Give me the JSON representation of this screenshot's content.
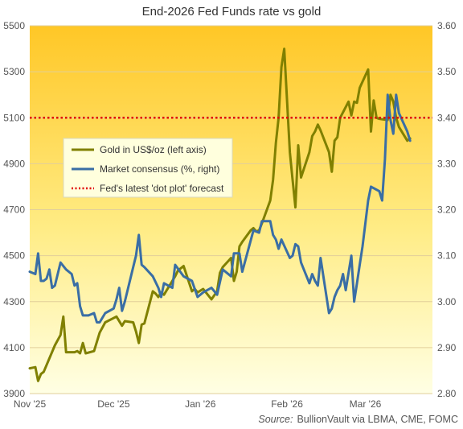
{
  "chart_data": {
    "type": "line",
    "title": "End-2026 Fed Funds rate vs gold",
    "source_label": "Source:",
    "source_text": "BullionVault via LBMA, CME, FOMC",
    "x_ticks": [
      "Nov '25",
      "Dec '25",
      "Jan '26",
      "Feb '26",
      "Mar '26"
    ],
    "x_range": [
      "2025-11-01",
      "2026-03-25"
    ],
    "left_axis": {
      "ylim": [
        3900,
        5500
      ],
      "ticks": [
        "5500",
        "5300",
        "5100",
        "4900",
        "4700",
        "4500",
        "4300",
        "4100",
        "3900"
      ]
    },
    "right_axis": {
      "ylim": [
        2.8,
        3.6
      ],
      "ticks": [
        "3.60",
        "3.50",
        "3.40",
        "3.30",
        "3.20",
        "3.10",
        "3.00",
        "2.90",
        "2.80"
      ]
    },
    "grid": "horizontal",
    "legend_position": "left-middle",
    "series": [
      {
        "name": "Gold in US$/oz (left axis)",
        "axis": "left",
        "color": "#808000",
        "points": [
          [
            "2025-11-01",
            4010
          ],
          [
            "2025-11-03",
            4015
          ],
          [
            "2025-11-04",
            3955
          ],
          [
            "2025-11-05",
            3985
          ],
          [
            "2025-11-06",
            3995
          ],
          [
            "2025-11-10",
            4110
          ],
          [
            "2025-11-12",
            4155
          ],
          [
            "2025-11-13",
            4235
          ],
          [
            "2025-11-14",
            4080
          ],
          [
            "2025-11-17",
            4080
          ],
          [
            "2025-11-18",
            4085
          ],
          [
            "2025-11-19",
            4075
          ],
          [
            "2025-11-20",
            4120
          ],
          [
            "2025-11-21",
            4075
          ],
          [
            "2025-11-24",
            4085
          ],
          [
            "2025-11-26",
            4165
          ],
          [
            "2025-11-28",
            4210
          ],
          [
            "2025-12-02",
            4235
          ],
          [
            "2025-12-04",
            4195
          ],
          [
            "2025-12-05",
            4215
          ],
          [
            "2025-12-08",
            4210
          ],
          [
            "2025-12-09",
            4170
          ],
          [
            "2025-12-10",
            4120
          ],
          [
            "2025-12-11",
            4200
          ],
          [
            "2025-12-12",
            4205
          ],
          [
            "2025-12-15",
            4345
          ],
          [
            "2025-12-16",
            4335
          ],
          [
            "2025-12-17",
            4320
          ],
          [
            "2025-12-18",
            4340
          ],
          [
            "2025-12-19",
            4330
          ],
          [
            "2025-12-22",
            4390
          ],
          [
            "2025-12-23",
            4410
          ],
          [
            "2025-12-24",
            4435
          ],
          [
            "2025-12-26",
            4455
          ],
          [
            "2025-12-29",
            4345
          ],
          [
            "2025-12-30",
            4355
          ],
          [
            "2025-12-31",
            4340
          ],
          [
            "2026-01-02",
            4355
          ],
          [
            "2026-01-05",
            4310
          ],
          [
            "2026-01-07",
            4345
          ],
          [
            "2026-01-08",
            4425
          ],
          [
            "2026-01-09",
            4450
          ],
          [
            "2026-01-12",
            4490
          ],
          [
            "2026-01-13",
            4390
          ],
          [
            "2026-01-14",
            4430
          ],
          [
            "2026-01-15",
            4540
          ],
          [
            "2026-01-16",
            4560
          ],
          [
            "2026-01-19",
            4610
          ],
          [
            "2026-01-20",
            4620
          ],
          [
            "2026-01-21",
            4605
          ],
          [
            "2026-01-22",
            4610
          ],
          [
            "2026-01-23",
            4640
          ],
          [
            "2026-01-26",
            4740
          ],
          [
            "2026-01-27",
            4830
          ],
          [
            "2026-01-28",
            4990
          ],
          [
            "2026-01-29",
            5100
          ],
          [
            "2026-01-30",
            5320
          ],
          [
            "2026-01-31",
            5400
          ],
          [
            "2026-02-02",
            4950
          ],
          [
            "2026-02-03",
            4830
          ],
          [
            "2026-02-04",
            4710
          ],
          [
            "2026-02-05",
            4980
          ],
          [
            "2026-02-06",
            4840
          ],
          [
            "2026-02-09",
            4950
          ],
          [
            "2026-02-10",
            5020
          ],
          [
            "2026-02-11",
            5040
          ],
          [
            "2026-02-12",
            5070
          ],
          [
            "2026-02-13",
            5045
          ],
          [
            "2026-02-16",
            4950
          ],
          [
            "2026-02-17",
            4865
          ],
          [
            "2026-02-18",
            5000
          ],
          [
            "2026-02-19",
            5015
          ],
          [
            "2026-02-20",
            5100
          ],
          [
            "2026-02-23",
            5170
          ],
          [
            "2026-02-24",
            5110
          ],
          [
            "2026-02-25",
            5170
          ],
          [
            "2026-02-26",
            5165
          ],
          [
            "2026-02-27",
            5230
          ],
          [
            "2026-03-02",
            5310
          ],
          [
            "2026-03-03",
            5040
          ],
          [
            "2026-03-04",
            5175
          ],
          [
            "2026-03-05",
            5100
          ],
          [
            "2026-03-06",
            5095
          ],
          [
            "2026-03-09",
            5090
          ],
          [
            "2026-03-10",
            5200
          ],
          [
            "2026-03-11",
            5170
          ],
          [
            "2026-03-12",
            5100
          ],
          [
            "2026-03-13",
            5060
          ],
          [
            "2026-03-16",
            5000
          ],
          [
            "2026-03-17",
            5010
          ]
        ]
      },
      {
        "name": "Market consensus (%, right)",
        "axis": "right",
        "color": "#3A6EA5",
        "points": [
          [
            "2025-11-01",
            3.065
          ],
          [
            "2025-11-03",
            3.06
          ],
          [
            "2025-11-04",
            3.105
          ],
          [
            "2025-11-05",
            3.045
          ],
          [
            "2025-11-06",
            3.045
          ],
          [
            "2025-11-07",
            3.05
          ],
          [
            "2025-11-08",
            3.07
          ],
          [
            "2025-11-09",
            3.03
          ],
          [
            "2025-11-10",
            3.035
          ],
          [
            "2025-11-12",
            3.085
          ],
          [
            "2025-11-14",
            3.07
          ],
          [
            "2025-11-16",
            3.06
          ],
          [
            "2025-11-17",
            3.035
          ],
          [
            "2025-11-18",
            3.04
          ],
          [
            "2025-11-19",
            2.99
          ],
          [
            "2025-11-20",
            2.97
          ],
          [
            "2025-11-22",
            2.97
          ],
          [
            "2025-11-24",
            2.975
          ],
          [
            "2025-11-25",
            2.955
          ],
          [
            "2025-11-26",
            2.955
          ],
          [
            "2025-11-28",
            2.975
          ],
          [
            "2025-12-01",
            2.985
          ],
          [
            "2025-12-02",
            3.005
          ],
          [
            "2025-12-03",
            3.03
          ],
          [
            "2025-12-04",
            2.98
          ],
          [
            "2025-12-05",
            3.0
          ],
          [
            "2025-12-08",
            3.075
          ],
          [
            "2025-12-09",
            3.1
          ],
          [
            "2025-12-10",
            3.145
          ],
          [
            "2025-12-11",
            3.08
          ],
          [
            "2025-12-12",
            3.075
          ],
          [
            "2025-12-15",
            3.055
          ],
          [
            "2025-12-17",
            3.03
          ],
          [
            "2025-12-18",
            3.01
          ],
          [
            "2025-12-19",
            3.04
          ],
          [
            "2025-12-22",
            3.03
          ],
          [
            "2025-12-23",
            3.08
          ],
          [
            "2025-12-26",
            3.055
          ],
          [
            "2025-12-29",
            3.045
          ],
          [
            "2025-12-31",
            3.01
          ],
          [
            "2026-01-02",
            3.02
          ],
          [
            "2026-01-05",
            3.03
          ],
          [
            "2026-01-07",
            3.015
          ],
          [
            "2026-01-09",
            3.07
          ],
          [
            "2026-01-12",
            3.055
          ],
          [
            "2026-01-13",
            3.105
          ],
          [
            "2026-01-15",
            3.105
          ],
          [
            "2026-01-16",
            3.065
          ],
          [
            "2026-01-20",
            3.155
          ],
          [
            "2026-01-22",
            3.15
          ],
          [
            "2026-01-23",
            3.175
          ],
          [
            "2026-01-26",
            3.175
          ],
          [
            "2026-01-27",
            3.145
          ],
          [
            "2026-01-28",
            3.135
          ],
          [
            "2026-01-29",
            3.115
          ],
          [
            "2026-01-30",
            3.135
          ],
          [
            "2026-02-02",
            3.095
          ],
          [
            "2026-02-03",
            3.1
          ],
          [
            "2026-02-04",
            3.125
          ],
          [
            "2026-02-05",
            3.12
          ],
          [
            "2026-02-06",
            3.085
          ],
          [
            "2026-02-09",
            3.04
          ],
          [
            "2026-02-10",
            3.06
          ],
          [
            "2026-02-11",
            3.045
          ],
          [
            "2026-02-12",
            3.035
          ],
          [
            "2026-02-13",
            3.095
          ],
          [
            "2026-02-16",
            2.975
          ],
          [
            "2026-02-17",
            2.985
          ],
          [
            "2026-02-18",
            3.01
          ],
          [
            "2026-02-19",
            3.025
          ],
          [
            "2026-02-20",
            3.035
          ],
          [
            "2026-02-21",
            3.06
          ],
          [
            "2026-02-22",
            3.025
          ],
          [
            "2026-02-24",
            3.1
          ],
          [
            "2026-02-25",
            3.0
          ],
          [
            "2026-02-26",
            3.04
          ],
          [
            "2026-02-27",
            3.08
          ],
          [
            "2026-02-28",
            3.12
          ],
          [
            "2026-03-02",
            3.22
          ],
          [
            "2026-03-03",
            3.25
          ],
          [
            "2026-03-06",
            3.24
          ],
          [
            "2026-03-07",
            3.22
          ],
          [
            "2026-03-08",
            3.31
          ],
          [
            "2026-03-09",
            3.45
          ],
          [
            "2026-03-10",
            3.395
          ],
          [
            "2026-03-11",
            3.365
          ],
          [
            "2026-03-12",
            3.45
          ],
          [
            "2026-03-13",
            3.41
          ],
          [
            "2026-03-16",
            3.37
          ],
          [
            "2026-03-17",
            3.35
          ]
        ]
      },
      {
        "name": "Fed's latest 'dot plot' forecast",
        "axis": "right",
        "color": "#E00000",
        "style": "dotted",
        "value": 3.4
      }
    ]
  }
}
